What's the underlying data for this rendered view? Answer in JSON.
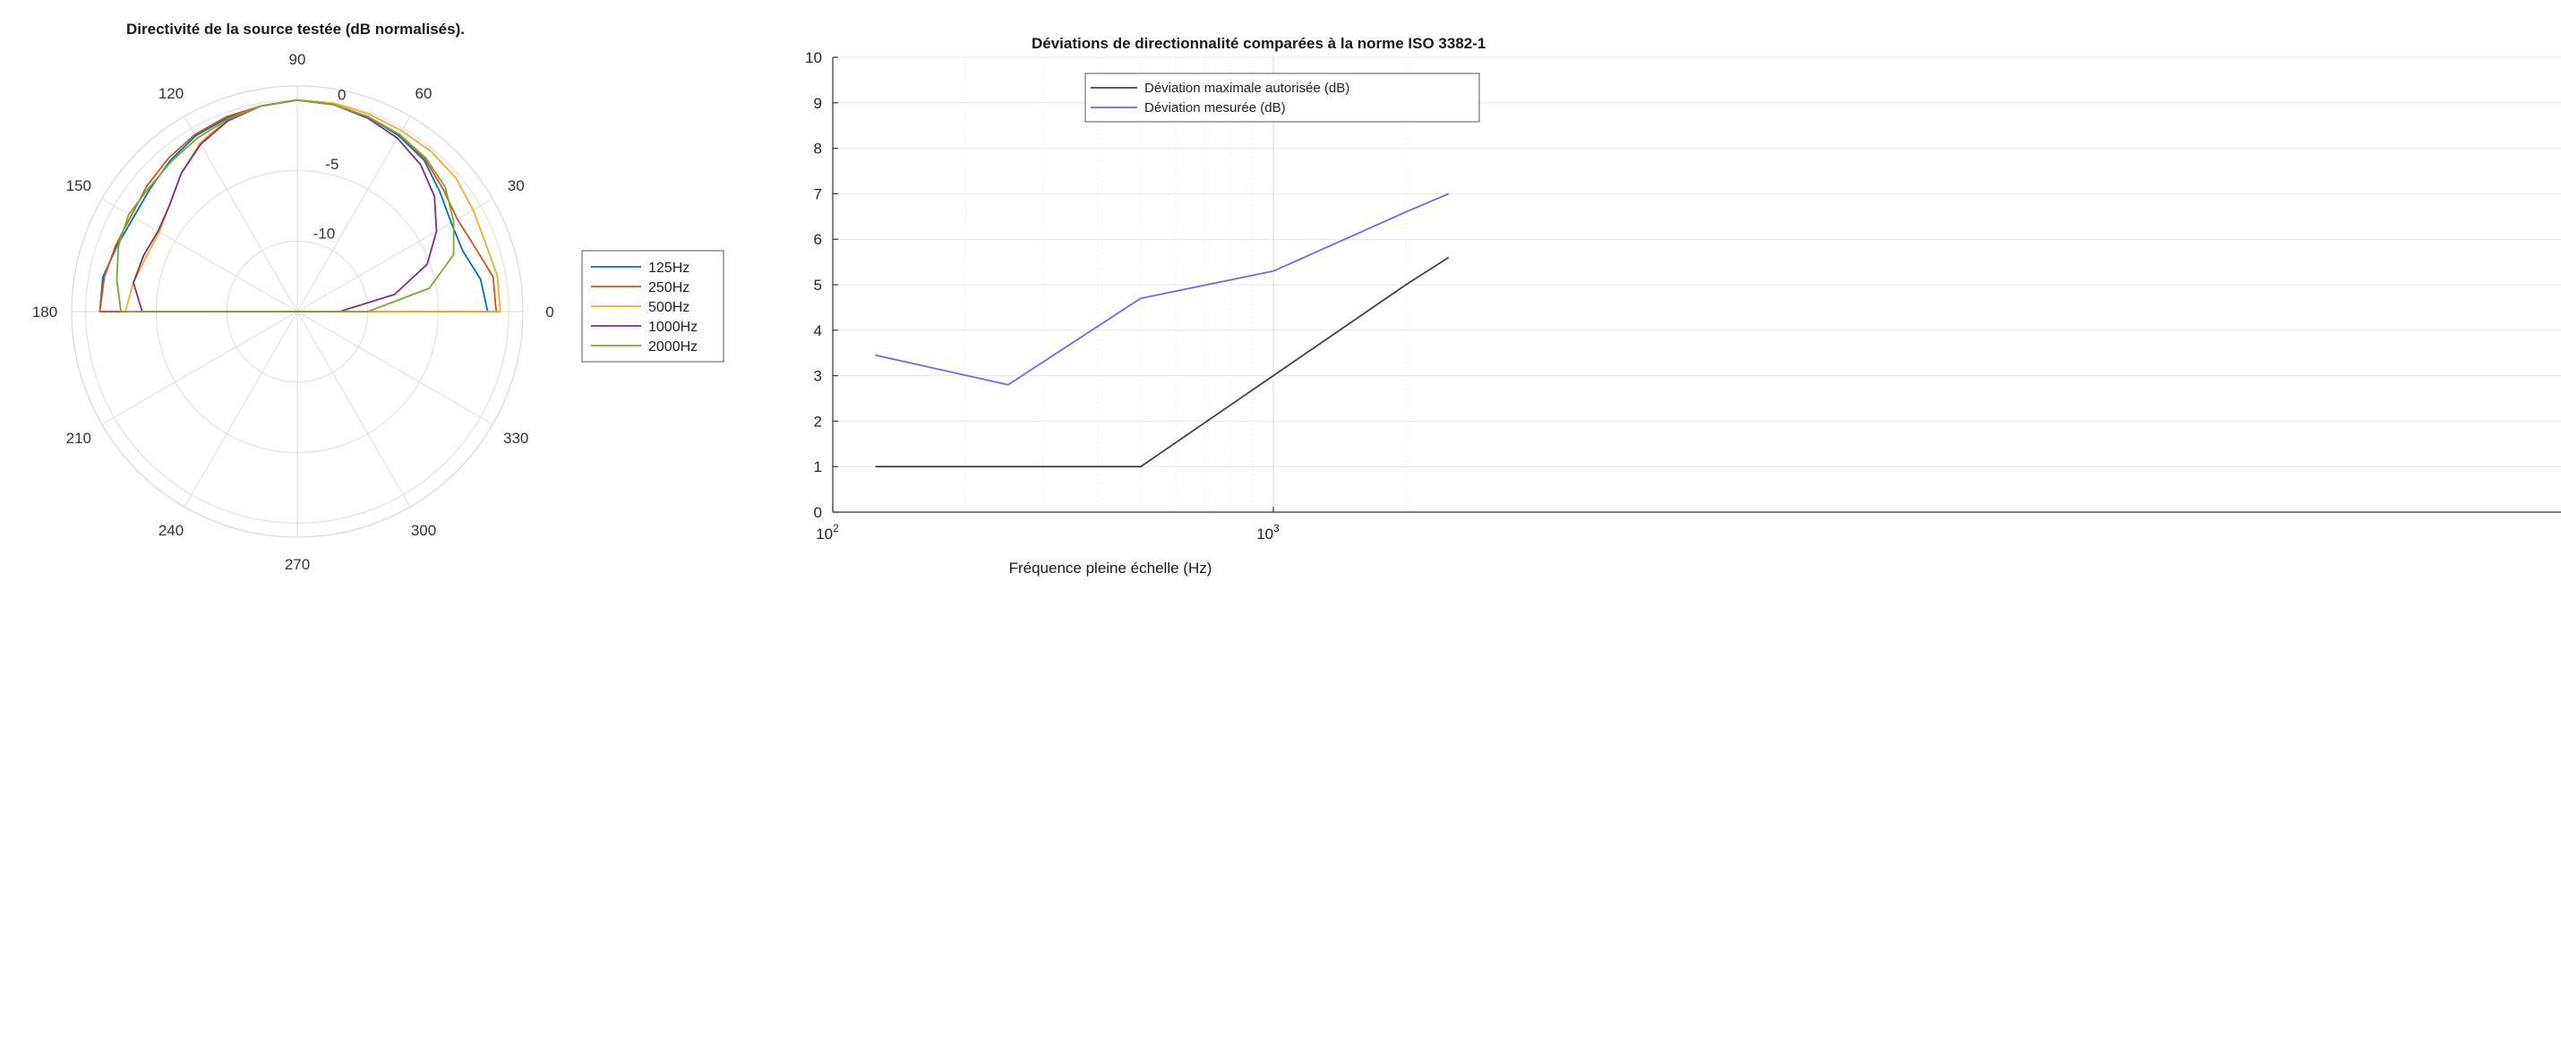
{
  "chart_data": [
    {
      "type": "line",
      "projection": "polar",
      "title": "Directivité de la source testée (dB normalisés).",
      "angle_unit": "deg",
      "theta_ticks": [
        0,
        30,
        60,
        90,
        120,
        150,
        180,
        210,
        240,
        270,
        300,
        330
      ],
      "theta_tick_labels": [
        "0",
        "30",
        "60",
        "90",
        "120",
        "150",
        "180",
        "210",
        "240",
        "270",
        "300",
        "330"
      ],
      "rlim": [
        -15,
        1
      ],
      "r_ticks": [
        -10,
        -5,
        0
      ],
      "r_tick_labels": [
        "-10",
        "-5",
        "0"
      ],
      "grid": true,
      "legend_position": "right",
      "series": [
        {
          "name": "125Hz",
          "color": "#0072BD",
          "theta": [
            0,
            10,
            20,
            30,
            40,
            50,
            60,
            70,
            80,
            90,
            100,
            110,
            120,
            130,
            140,
            150,
            160,
            170,
            180
          ],
          "r": [
            -1.5,
            -1.8,
            -2.5,
            -2.4,
            -1.8,
            -1.0,
            -0.6,
            -0.3,
            -0.1,
            0,
            -0.2,
            -0.4,
            -0.6,
            -1.0,
            -1.4,
            -1.6,
            -1.4,
            -1.0,
            -1.0
          ]
        },
        {
          "name": "250Hz",
          "color": "#D95319",
          "theta": [
            0,
            10,
            20,
            30,
            40,
            50,
            60,
            70,
            80,
            90,
            100,
            110,
            120,
            130,
            140,
            150,
            160,
            170,
            180
          ],
          "r": [
            -0.9,
            -0.9,
            -1.6,
            -1.9,
            -1.5,
            -0.9,
            -0.5,
            -0.3,
            -0.1,
            0,
            -0.2,
            -0.3,
            -0.5,
            -0.8,
            -1.1,
            -1.4,
            -1.3,
            -1.1,
            -1.0
          ]
        },
        {
          "name": "500Hz",
          "color": "#EDB120",
          "theta": [
            0,
            10,
            20,
            30,
            40,
            50,
            60,
            70,
            80,
            90,
            100,
            110,
            120,
            130,
            140,
            150,
            160,
            170,
            180
          ],
          "r": [
            -0.6,
            -0.6,
            -0.8,
            -0.6,
            -0.3,
            -0.2,
            -0.2,
            -0.1,
            0,
            0,
            -0.2,
            -0.5,
            -1.2,
            -2.2,
            -3.2,
            -3.7,
            -3.6,
            -3.2,
            -2.8
          ]
        },
        {
          "name": "1000Hz",
          "color": "#7E2F8E",
          "theta": [
            0,
            10,
            20,
            30,
            40,
            50,
            60,
            70,
            80,
            90,
            100,
            110,
            120,
            130,
            140,
            150,
            160,
            170,
            180
          ],
          "r": [
            -12.0,
            -8.0,
            -5.2,
            -3.6,
            -2.3,
            -1.4,
            -0.8,
            -0.4,
            -0.1,
            0,
            -0.2,
            -0.6,
            -1.3,
            -2.2,
            -3.2,
            -3.6,
            -3.4,
            -3.2,
            -4.0
          ]
        },
        {
          "name": "2000Hz",
          "color": "#77AC30",
          "theta": [
            0,
            10,
            20,
            30,
            40,
            50,
            60,
            70,
            80,
            90,
            100,
            110,
            120,
            130,
            140,
            150,
            160,
            170,
            180
          ],
          "r": [
            -10.0,
            -5.5,
            -3.2,
            -2.2,
            -1.3,
            -0.8,
            -0.5,
            -0.3,
            -0.1,
            0,
            -0.2,
            -0.5,
            -0.8,
            -1.1,
            -1.3,
            -1.2,
            -1.5,
            -2.0,
            -2.5
          ]
        }
      ]
    },
    {
      "type": "line",
      "title": "Déviations de directionnalité comparées à la norme ISO 3382-1",
      "xlabel": "Fréquence pleine échelle (Hz)",
      "ylabel": "",
      "xscale": "log",
      "xlim": [
        100,
        2500
      ],
      "ylim": [
        0,
        10
      ],
      "x_ticks": [
        100,
        1000
      ],
      "x_tick_labels": [
        {
          "base": "10",
          "exp": "2"
        },
        {
          "base": "10",
          "exp": "3"
        }
      ],
      "y_ticks": [
        0,
        1,
        2,
        3,
        4,
        5,
        6,
        7,
        8,
        9,
        10
      ],
      "y_tick_labels": [
        "0",
        "1",
        "2",
        "3",
        "4",
        "5",
        "6",
        "7",
        "8",
        "9",
        "10"
      ],
      "grid": true,
      "legend_position": "top-right",
      "series": [
        {
          "name": "Déviation maximale autorisée (dB)",
          "color": "#444444",
          "x": [
            125,
            250,
            500,
            1000,
            2000,
            2500
          ],
          "y": [
            1,
            1,
            1,
            3,
            5,
            5.6
          ]
        },
        {
          "name": "Déviation mesurée (dB)",
          "color": "#6a6af2",
          "x": [
            125,
            250,
            500,
            1000,
            2000,
            2500
          ],
          "y": [
            3.45,
            2.8,
            4.7,
            5.3,
            6.6,
            7.0
          ]
        }
      ]
    }
  ]
}
